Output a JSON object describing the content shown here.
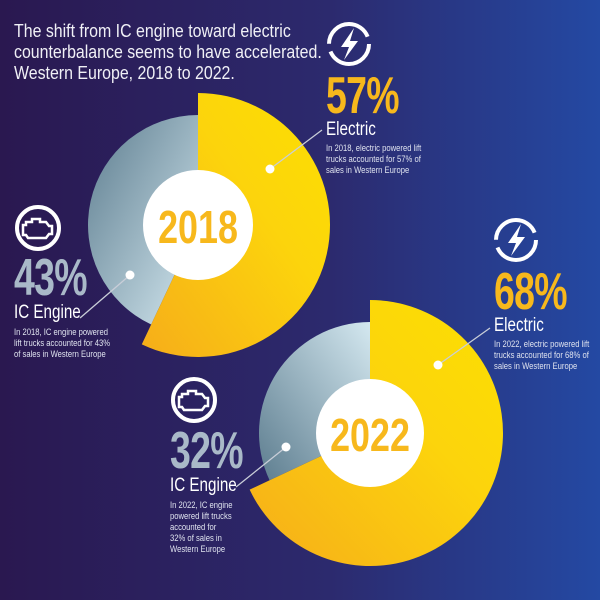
{
  "title": "The shift from IC engine toward electric counterbalance seems to have accelerated. Western Europe, 2018 to 2022.",
  "colors": {
    "electric": "#f9c80e",
    "ic_engine": "#8fa9b8",
    "center": "#ffffff",
    "year_text": "#f7b81c"
  },
  "chart_data": [
    {
      "type": "pie",
      "title": "2018",
      "categories": [
        "Electric",
        "IC Engine"
      ],
      "values": [
        57,
        43
      ],
      "labels": {
        "electric": {
          "pct": "57%",
          "name": "Electric",
          "desc": "In 2018, electric powered lift trucks accounted for 57% of sales in Western Europe",
          "icon": "lightning-bolt-icon"
        },
        "ic": {
          "pct": "43%",
          "name": "IC Engine",
          "desc": "In 2018, IC engine powered lift trucks accounted for 43% of sales in Western Europe",
          "icon": "engine-icon"
        }
      }
    },
    {
      "type": "pie",
      "title": "2022",
      "categories": [
        "Electric",
        "IC Engine"
      ],
      "values": [
        68,
        32
      ],
      "labels": {
        "electric": {
          "pct": "68%",
          "name": "Electric",
          "desc": "In 2022, electric powered lift trucks accounted for 68% of sales in Western Europe",
          "icon": "lightning-bolt-icon"
        },
        "ic": {
          "pct": "32%",
          "name": "IC Engine",
          "desc": "In 2022, IC engine powered lift trucks accounted for 32% of sales in Western Europe",
          "icon": "engine-icon"
        }
      }
    }
  ]
}
